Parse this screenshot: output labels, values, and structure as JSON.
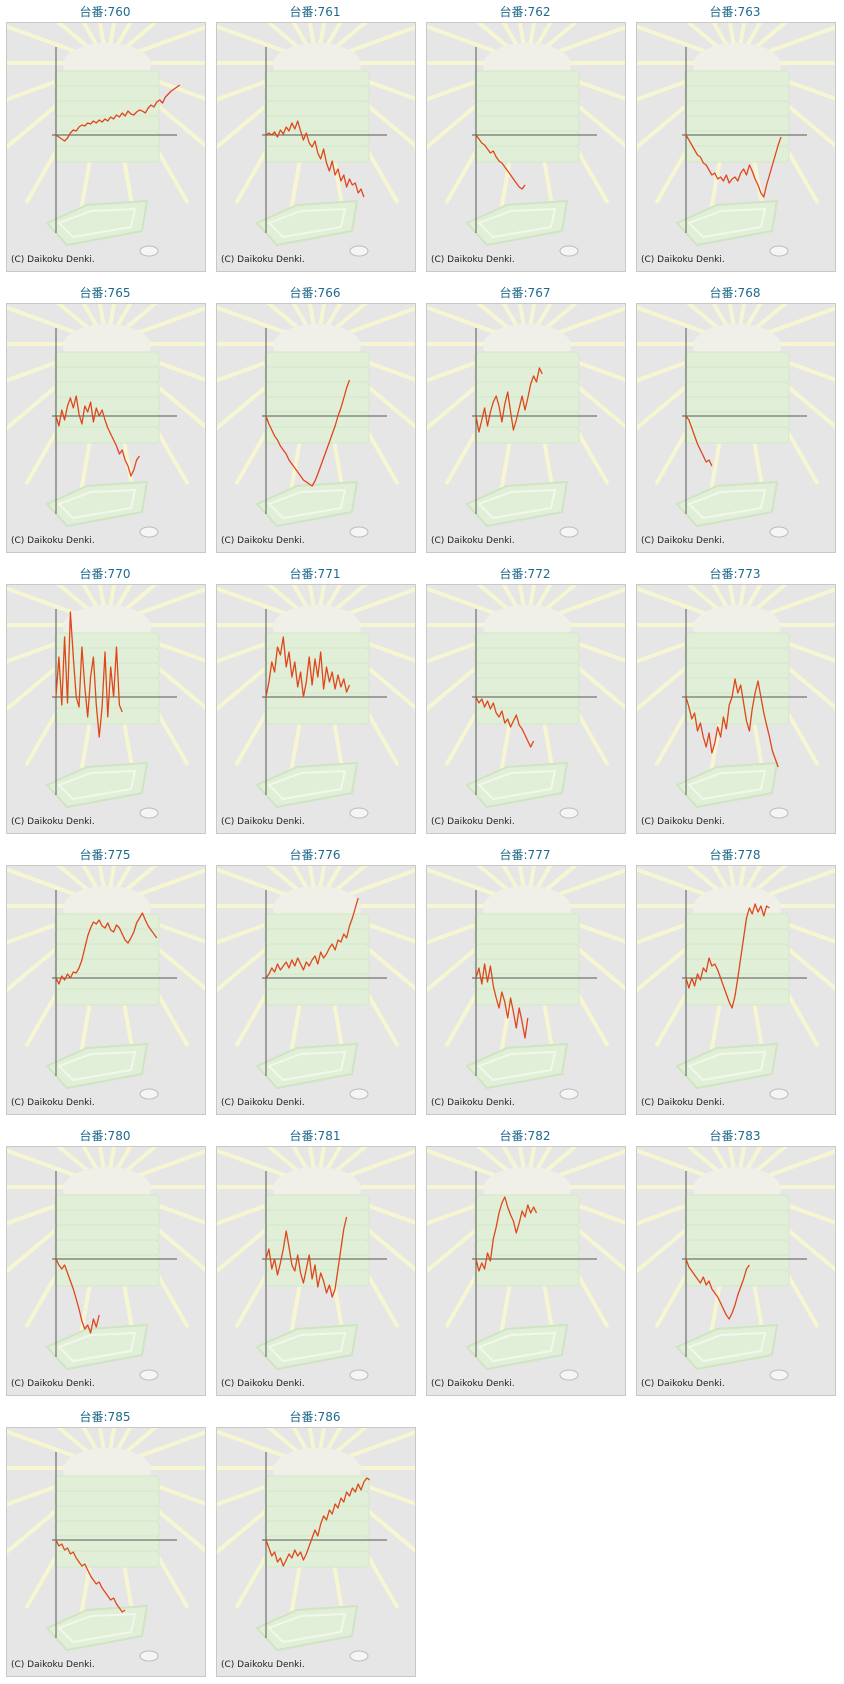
{
  "page": {
    "copyright_text": "(C) Daikoku Denki."
  },
  "colors": {
    "title": "#1f6a8c",
    "line": "#e0461c",
    "axis": "#555555",
    "background": "#e6e6e6",
    "frame": "#c8c8c8"
  },
  "chart_data": [
    {
      "type": "line",
      "title": "台番:760",
      "values": [
        0,
        -2,
        -4,
        -6,
        -3,
        2,
        5,
        4,
        8,
        10,
        9,
        12,
        11,
        14,
        12,
        15,
        13,
        16,
        14,
        18,
        16,
        20,
        18,
        22,
        19,
        24,
        21,
        20,
        23,
        25,
        24,
        22,
        27,
        30,
        28,
        33,
        35,
        32,
        38,
        41,
        44,
        46,
        48,
        50
      ]
    },
    {
      "type": "line",
      "title": "台番:761",
      "values": [
        0,
        2,
        0,
        3,
        -2,
        5,
        1,
        8,
        4,
        12,
        6,
        14,
        4,
        -5,
        2,
        -8,
        -12,
        -6,
        -18,
        -24,
        -14,
        -28,
        -36,
        -26,
        -40,
        -34,
        -46,
        -40,
        -52,
        -44,
        -50,
        -48,
        -58,
        -54,
        -62
      ]
    },
    {
      "type": "line",
      "title": "台番:762",
      "values": [
        0,
        -4,
        -8,
        -10,
        -14,
        -18,
        -16,
        -22,
        -26,
        -28,
        -32,
        -36,
        -40,
        -44,
        -48,
        -52,
        -54,
        -50
      ]
    },
    {
      "type": "line",
      "title": "台番:763",
      "values": [
        0,
        -5,
        -10,
        -15,
        -20,
        -22,
        -28,
        -30,
        -35,
        -40,
        -38,
        -44,
        -42,
        -46,
        -40,
        -48,
        -44,
        -42,
        -46,
        -38,
        -34,
        -40,
        -30,
        -36,
        -44,
        -50,
        -58,
        -62,
        -50,
        -40,
        -30,
        -20,
        -10,
        -2
      ]
    },
    {
      "type": "line",
      "title": "台番:765",
      "values": [
        0,
        -10,
        6,
        -4,
        10,
        18,
        8,
        20,
        2,
        -8,
        10,
        4,
        14,
        -6,
        8,
        0,
        6,
        -4,
        -12,
        -18,
        -24,
        -30,
        -38,
        -34,
        -44,
        -50,
        -60,
        -54,
        -44,
        -40
      ]
    },
    {
      "type": "line",
      "title": "台番:766",
      "values": [
        0,
        -8,
        -14,
        -20,
        -24,
        -30,
        -34,
        -38,
        -44,
        -48,
        -52,
        -56,
        -60,
        -64,
        -66,
        -68,
        -70,
        -65,
        -58,
        -50,
        -42,
        -34,
        -26,
        -18,
        -10,
        0,
        8,
        18,
        28,
        36
      ]
    },
    {
      "type": "line",
      "title": "台番:767",
      "values": [
        0,
        -16,
        -4,
        8,
        -10,
        4,
        14,
        20,
        10,
        -6,
        12,
        24,
        4,
        -14,
        -4,
        8,
        20,
        6,
        18,
        32,
        40,
        34,
        48,
        42
      ]
    },
    {
      "type": "line",
      "title": "台番:768",
      "values": [
        0,
        -4,
        -12,
        -20,
        -28,
        -34,
        -40,
        -46,
        -44,
        -50
      ]
    },
    {
      "type": "line",
      "title": "台番:770",
      "values": [
        0,
        40,
        -8,
        60,
        -6,
        85,
        40,
        0,
        -10,
        50,
        10,
        -20,
        20,
        40,
        -8,
        -40,
        -10,
        45,
        -20,
        30,
        0,
        50,
        -8,
        -15
      ]
    },
    {
      "type": "line",
      "title": "台番:771",
      "values": [
        0,
        15,
        35,
        25,
        50,
        42,
        60,
        30,
        45,
        20,
        35,
        10,
        25,
        0,
        15,
        40,
        12,
        38,
        20,
        45,
        8,
        30,
        15,
        25,
        8,
        22,
        10,
        18,
        5,
        12
      ]
    },
    {
      "type": "line",
      "title": "台番:772",
      "values": [
        0,
        -6,
        -2,
        -10,
        -4,
        -12,
        -6,
        -16,
        -20,
        -14,
        -26,
        -22,
        -30,
        -24,
        -18,
        -28,
        -32,
        -38,
        -44,
        -50,
        -44
      ]
    },
    {
      "type": "line",
      "title": "台番:773",
      "values": [
        0,
        -10,
        -22,
        -16,
        -34,
        -26,
        -40,
        -50,
        -36,
        -56,
        -46,
        -30,
        -40,
        -20,
        -32,
        -8,
        0,
        18,
        4,
        12,
        -6,
        -24,
        -34,
        -12,
        4,
        16,
        0,
        -16,
        -28,
        -40,
        -54,
        -62,
        -70
      ]
    },
    {
      "type": "line",
      "title": "台番:775",
      "values": [
        0,
        -6,
        2,
        -2,
        4,
        0,
        6,
        5,
        10,
        18,
        30,
        42,
        50,
        56,
        54,
        58,
        52,
        50,
        55,
        48,
        46,
        53,
        50,
        44,
        38,
        35,
        40,
        46,
        55,
        60,
        65,
        58,
        52,
        48,
        44,
        40
      ]
    },
    {
      "type": "line",
      "title": "台番:776",
      "values": [
        0,
        4,
        10,
        6,
        14,
        8,
        12,
        16,
        10,
        18,
        12,
        20,
        14,
        8,
        16,
        12,
        18,
        22,
        14,
        26,
        20,
        24,
        30,
        34,
        28,
        38,
        36,
        44,
        40,
        52,
        60,
        70,
        80
      ]
    },
    {
      "type": "line",
      "title": "台番:777",
      "values": [
        0,
        10,
        -6,
        14,
        -4,
        12,
        -8,
        -20,
        -30,
        -14,
        -24,
        -40,
        -20,
        -34,
        -50,
        -30,
        -44,
        -60,
        -40
      ]
    },
    {
      "type": "line",
      "title": "台番:778",
      "values": [
        0,
        -10,
        0,
        -8,
        4,
        -2,
        10,
        6,
        20,
        12,
        14,
        8,
        0,
        -8,
        -16,
        -24,
        -30,
        -18,
        0,
        20,
        40,
        60,
        70,
        64,
        74,
        66,
        72,
        62,
        72,
        70
      ]
    },
    {
      "type": "line",
      "title": "台番:780",
      "values": [
        0,
        -6,
        -10,
        -6,
        -14,
        -22,
        -30,
        -40,
        -50,
        -62,
        -70,
        -66,
        -74,
        -60,
        -68,
        -56
      ]
    },
    {
      "type": "line",
      "title": "台番:781",
      "values": [
        0,
        10,
        -10,
        0,
        -16,
        -4,
        10,
        28,
        12,
        -6,
        -12,
        4,
        -14,
        -24,
        -10,
        4,
        -20,
        -6,
        -28,
        -14,
        -22,
        -34,
        -26,
        -38,
        -30,
        -10,
        10,
        30,
        42
      ]
    },
    {
      "type": "line",
      "title": "台番:782",
      "values": [
        0,
        -12,
        -4,
        -10,
        6,
        -2,
        20,
        32,
        46,
        56,
        62,
        52,
        44,
        38,
        26,
        36,
        48,
        42,
        54,
        46,
        52,
        46
      ]
    },
    {
      "type": "line",
      "title": "台番:783",
      "values": [
        0,
        -8,
        -12,
        -16,
        -20,
        -24,
        -18,
        -26,
        -22,
        -30,
        -34,
        -38,
        -44,
        -50,
        -56,
        -60,
        -54,
        -46,
        -36,
        -28,
        -20,
        -10,
        -6
      ]
    },
    {
      "type": "line",
      "title": "台番:785",
      "values": [
        0,
        -6,
        -4,
        -10,
        -8,
        -14,
        -12,
        -18,
        -22,
        -26,
        -24,
        -30,
        -36,
        -40,
        -44,
        -42,
        -48,
        -52,
        -56,
        -60,
        -58,
        -64,
        -68,
        -72,
        -70
      ]
    },
    {
      "type": "line",
      "title": "台番:786",
      "values": [
        0,
        -8,
        -16,
        -12,
        -22,
        -18,
        -26,
        -20,
        -14,
        -18,
        -10,
        -16,
        -12,
        -20,
        -14,
        -6,
        2,
        10,
        4,
        16,
        24,
        20,
        30,
        26,
        36,
        32,
        42,
        38,
        48,
        44,
        52,
        48,
        56,
        50,
        58,
        62,
        60
      ]
    }
  ]
}
